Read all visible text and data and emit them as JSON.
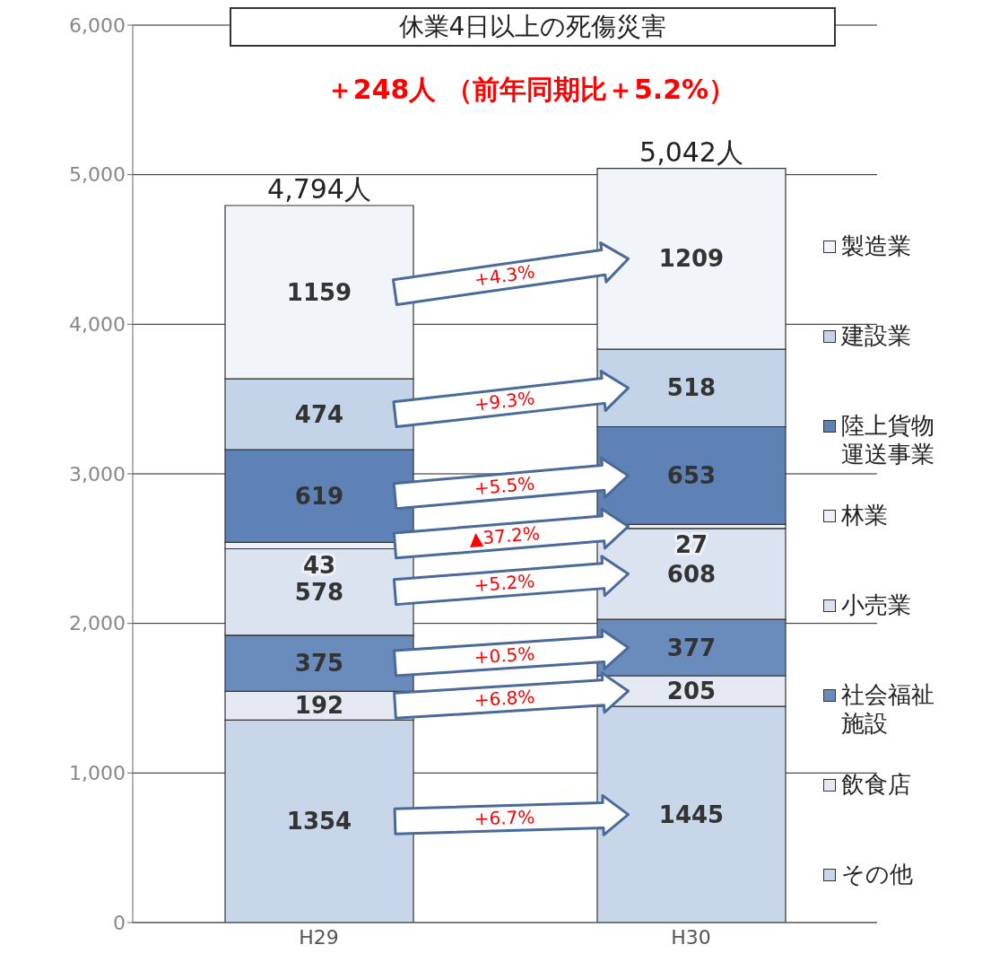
{
  "chart_data": {
    "type": "bar",
    "stacked": true,
    "title": "休業4日以上の死傷災害",
    "subtitle": "＋248人 （前年同期比＋5.2%）",
    "categories": [
      "H29",
      "H30"
    ],
    "series": [
      {
        "name": "その他",
        "color": "#c8d6ea",
        "values": [
          1354,
          1445
        ]
      },
      {
        "name": "飲食店",
        "color": "#e4e9f2",
        "values": [
          192,
          205
        ]
      },
      {
        "name": "社会福祉施設",
        "color": "#6a8cbd",
        "values": [
          375,
          377
        ]
      },
      {
        "name": "小売業",
        "color": "#dbe3f0",
        "values": [
          578,
          608
        ]
      },
      {
        "name": "林業",
        "color": "#eef2f8",
        "values": [
          43,
          27
        ]
      },
      {
        "name": "陸上貨物運送事業",
        "color": "#5e82b6",
        "values": [
          619,
          653
        ]
      },
      {
        "name": "建設業",
        "color": "#c3d3e8",
        "values": [
          474,
          518
        ]
      },
      {
        "name": "製造業",
        "color": "#f1f4f9",
        "values": [
          1159,
          1209
        ]
      }
    ],
    "annotations": [
      "+6.7%",
      "+6.8%",
      "+0.5%",
      "+5.2%",
      "▲37.2%",
      "+5.5%",
      "+9.3%",
      "+4.3%"
    ],
    "totals": [
      "4,794人",
      "5,042人"
    ],
    "data_labels": true,
    "ylim": [
      0,
      6000
    ],
    "yticks": [
      0,
      {
        "value": 1000,
        "label": "1,000"
      },
      {
        "value": 2000,
        "label": "2,000"
      },
      {
        "value": 3000,
        "label": "3,000"
      },
      {
        "value": 4000,
        "label": "4,000"
      },
      {
        "value": 5000,
        "label": "5,000"
      },
      {
        "value": 6000,
        "label": "6,000"
      }
    ],
    "grid": "y",
    "legend": "right"
  }
}
